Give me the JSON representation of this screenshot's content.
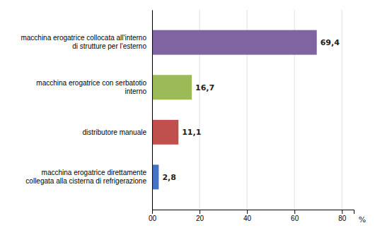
{
  "chart_data": {
    "type": "bar",
    "orientation": "horizontal",
    "categories": [
      "macchina erogatrice direttamente\ncollegata alla cisterna di refrigerazione",
      "distributore manuale",
      "macchina erogatrice con serbatotio\ninterno",
      "macchina erogatrice collocata all'interno\ndi strutture per l'esterno"
    ],
    "values": [
      2.8,
      11.1,
      16.7,
      69.4
    ],
    "value_labels": [
      "2,8",
      "11,1",
      "16,7",
      "69,4"
    ],
    "data_labels": true,
    "colors": [
      "#4472C4",
      "#C0504D",
      "#9BBB59",
      "#8064A2"
    ],
    "xlabel": "%",
    "xlim": [
      0,
      85
    ],
    "xticks": [
      {
        "value": 0,
        "label": "00"
      },
      20,
      40,
      60,
      80
    ],
    "grid": true
  }
}
